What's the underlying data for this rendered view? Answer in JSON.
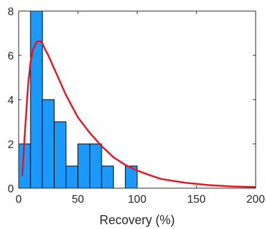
{
  "chart_data": {
    "type": "bar",
    "title": "",
    "xlabel": "Recovery (%)",
    "ylabel": "",
    "xlim": [
      0,
      200
    ],
    "ylim": [
      0,
      8
    ],
    "x_ticks": [
      "0",
      "50",
      "100",
      "150",
      "200"
    ],
    "y_ticks": [
      "0",
      "2",
      "4",
      "6",
      "8"
    ],
    "grid": false,
    "legend": "none",
    "histogram": {
      "bin_width": 10,
      "bins": [
        {
          "start": 0,
          "end": 10,
          "count": 2
        },
        {
          "start": 10,
          "end": 20,
          "count": 8
        },
        {
          "start": 20,
          "end": 30,
          "count": 4
        },
        {
          "start": 30,
          "end": 40,
          "count": 3
        },
        {
          "start": 40,
          "end": 50,
          "count": 1
        },
        {
          "start": 50,
          "end": 60,
          "count": 2
        },
        {
          "start": 60,
          "end": 70,
          "count": 2
        },
        {
          "start": 70,
          "end": 80,
          "count": 1
        },
        {
          "start": 80,
          "end": 90,
          "count": 0
        },
        {
          "start": 90,
          "end": 100,
          "count": 1
        }
      ],
      "color": "#1a99ff",
      "edge_color": "#000000"
    },
    "fit_curve": {
      "type": "line",
      "color": "#e8141e",
      "x": [
        3,
        5,
        8,
        10,
        12,
        15,
        18,
        20,
        22,
        25,
        30,
        35,
        40,
        50,
        60,
        70,
        80,
        90,
        100,
        110,
        120,
        140,
        160,
        180,
        200
      ],
      "y": [
        0.55,
        2.3,
        4.7,
        5.7,
        6.25,
        6.6,
        6.65,
        6.55,
        6.3,
        6.0,
        5.4,
        4.8,
        4.2,
        3.2,
        2.5,
        1.9,
        1.4,
        1.05,
        0.8,
        0.6,
        0.42,
        0.25,
        0.14,
        0.08,
        0.05
      ]
    }
  }
}
